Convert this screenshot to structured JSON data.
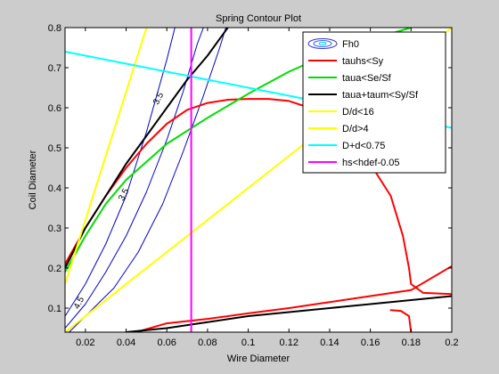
{
  "chart_data": {
    "type": "line",
    "title": "Spring Contour Plot",
    "xlabel": "Wire Diameter",
    "ylabel": "Coil Diameter",
    "xlim": [
      0.01,
      0.2
    ],
    "ylim": [
      0.04,
      0.8
    ],
    "xticks": [
      "0.02",
      "0.04",
      "0.06",
      "0.08",
      "0.1",
      "0.12",
      "0.14",
      "0.16",
      "0.18",
      "0.2"
    ],
    "yticks": [
      "0.1",
      "0.2",
      "0.3",
      "0.4",
      "0.5",
      "0.6",
      "0.7",
      "0.8"
    ],
    "xtick_values": [
      0.02,
      0.04,
      0.06,
      0.08,
      0.1,
      0.12,
      0.14,
      0.16,
      0.18,
      0.2
    ],
    "ytick_values": [
      0.1,
      0.2,
      0.3,
      0.4,
      0.5,
      0.6,
      0.7,
      0.8
    ],
    "grid": false,
    "legend_position": "top-right",
    "contour_labels": [
      {
        "text": "4.5",
        "x": 0.018,
        "y": 0.11
      },
      {
        "text": "3.5",
        "x": 0.04,
        "y": 0.38
      },
      {
        "text": "3.5",
        "x": 0.057,
        "y": 0.62
      }
    ],
    "series": [
      {
        "name": "Fh0",
        "color": "#0000cc",
        "style": "contour",
        "lines": [
          [
            [
              0.01,
              0.05
            ],
            [
              0.02,
              0.11
            ],
            [
              0.03,
              0.19
            ],
            [
              0.04,
              0.28
            ],
            [
              0.05,
              0.39
            ],
            [
              0.06,
              0.52
            ],
            [
              0.068,
              0.64
            ],
            [
              0.075,
              0.76
            ],
            [
              0.078,
              0.8
            ]
          ],
          [
            [
              0.012,
              0.04
            ],
            [
              0.022,
              0.09
            ],
            [
              0.034,
              0.15
            ],
            [
              0.046,
              0.24
            ],
            [
              0.058,
              0.36
            ],
            [
              0.068,
              0.49
            ],
            [
              0.078,
              0.63
            ],
            [
              0.086,
              0.75
            ],
            [
              0.089,
              0.8
            ]
          ],
          [
            [
              0.01,
              0.08
            ],
            [
              0.02,
              0.16
            ],
            [
              0.03,
              0.26
            ],
            [
              0.04,
              0.38
            ],
            [
              0.05,
              0.54
            ],
            [
              0.06,
              0.72
            ],
            [
              0.064,
              0.8
            ]
          ]
        ]
      },
      {
        "name": "tauhs<Sy",
        "color": "#ff0000",
        "style": "line",
        "lines": [
          [
            [
              0.01,
              0.21
            ],
            [
              0.02,
              0.3
            ],
            [
              0.03,
              0.38
            ],
            [
              0.04,
              0.45
            ],
            [
              0.05,
              0.51
            ],
            [
              0.06,
              0.56
            ],
            [
              0.07,
              0.595
            ],
            [
              0.08,
              0.612
            ],
            [
              0.09,
              0.62
            ],
            [
              0.1,
              0.622
            ],
            [
              0.11,
              0.622
            ],
            [
              0.12,
              0.617
            ],
            [
              0.13,
              0.6
            ],
            [
              0.14,
              0.57
            ],
            [
              0.15,
              0.525
            ],
            [
              0.16,
              0.46
            ],
            [
              0.17,
              0.38
            ],
            [
              0.176,
              0.28
            ],
            [
              0.179,
              0.2
            ],
            [
              0.18,
              0.16
            ],
            [
              0.186,
              0.138
            ],
            [
              0.2,
              0.135
            ]
          ],
          [
            [
              0.045,
              0.04
            ],
            [
              0.06,
              0.062
            ],
            [
              0.08,
              0.073
            ],
            [
              0.1,
              0.087
            ],
            [
              0.12,
              0.1
            ],
            [
              0.14,
              0.115
            ],
            [
              0.16,
              0.13
            ],
            [
              0.18,
              0.145
            ],
            [
              0.2,
              0.205
            ]
          ],
          [
            [
              0.17,
              0.095
            ],
            [
              0.175,
              0.093
            ],
            [
              0.179,
              0.08
            ],
            [
              0.18,
              0.04
            ]
          ]
        ]
      },
      {
        "name": "taua<Se/Sf",
        "color": "#00dd00",
        "style": "line",
        "lines": [
          [
            [
              0.01,
              0.19
            ],
            [
              0.02,
              0.28
            ],
            [
              0.03,
              0.36
            ],
            [
              0.04,
              0.42
            ],
            [
              0.06,
              0.51
            ],
            [
              0.08,
              0.575
            ],
            [
              0.1,
              0.635
            ],
            [
              0.12,
              0.69
            ],
            [
              0.14,
              0.735
            ],
            [
              0.16,
              0.77
            ],
            [
              0.18,
              0.8
            ]
          ]
        ]
      },
      {
        "name": "taua+taum<Sy/Sf",
        "color": "#000000",
        "style": "line",
        "lines": [
          [
            [
              0.01,
              0.2
            ],
            [
              0.02,
              0.3
            ],
            [
              0.03,
              0.38
            ],
            [
              0.04,
              0.46
            ],
            [
              0.05,
              0.53
            ],
            [
              0.06,
              0.6
            ],
            [
              0.07,
              0.67
            ],
            [
              0.08,
              0.73
            ],
            [
              0.09,
              0.8
            ]
          ],
          [
            [
              0.04,
              0.04
            ],
            [
              0.06,
              0.05
            ],
            [
              0.08,
              0.065
            ],
            [
              0.1,
              0.08
            ],
            [
              0.12,
              0.09
            ],
            [
              0.14,
              0.1
            ],
            [
              0.16,
              0.11
            ],
            [
              0.18,
              0.12
            ],
            [
              0.2,
              0.13
            ]
          ]
        ]
      },
      {
        "name": "D/d<16",
        "color": "#ffff00",
        "style": "line",
        "lines": [
          [
            [
              0.01,
              0.16
            ],
            [
              0.05,
              0.8
            ]
          ]
        ]
      },
      {
        "name": "D/d>4",
        "color": "#ffff00",
        "style": "line",
        "lines": [
          [
            [
              0.01,
              0.04
            ],
            [
              0.2,
              0.8
            ]
          ]
        ]
      },
      {
        "name": "D+d<0.75",
        "color": "#00ffff",
        "style": "line",
        "lines": [
          [
            [
              0.01,
              0.74
            ],
            [
              0.2,
              0.55
            ]
          ]
        ]
      },
      {
        "name": "hs<hdef-0.05",
        "color": "#ff00ff",
        "style": "line",
        "lines": [
          [
            [
              0.072,
              0.04
            ],
            [
              0.072,
              0.8
            ]
          ]
        ]
      }
    ]
  }
}
